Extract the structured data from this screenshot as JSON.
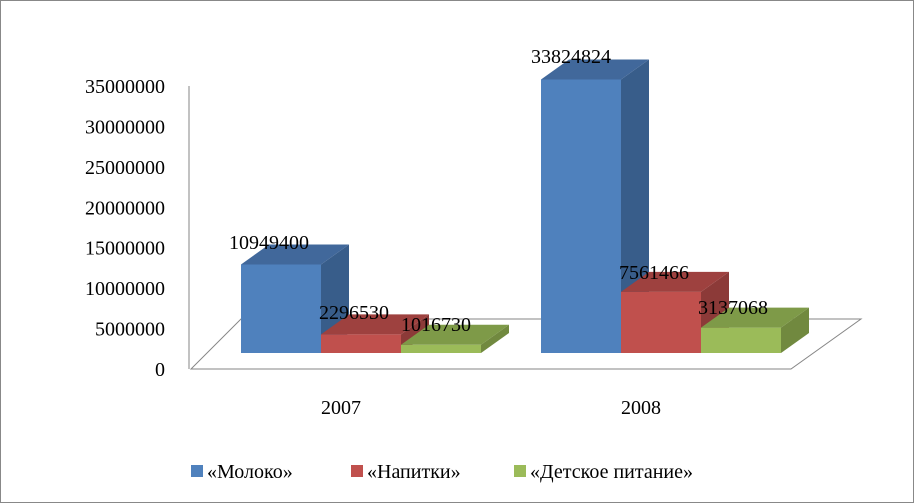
{
  "chart_data": {
    "type": "bar",
    "style": "3d-clustered-column",
    "title": "",
    "xlabel": "",
    "ylabel": "",
    "categories": [
      "2007",
      "2008"
    ],
    "series": [
      {
        "name": "«Молоко»",
        "values": [
          10949400,
          33824824
        ],
        "labels": [
          "10949400",
          "33824824"
        ],
        "color": "#4f81bd",
        "side": "#385d8a",
        "top": "#41689b"
      },
      {
        "name": "«Напитки»",
        "values": [
          2296530,
          7561466
        ],
        "labels": [
          "2296530",
          "7561466"
        ],
        "color": "#c0504d",
        "side": "#8c3a38",
        "top": "#9e413f"
      },
      {
        "name": "«Детское питание»",
        "values": [
          1016730,
          3137068
        ],
        "labels": [
          "1016730",
          "3137068"
        ],
        "color": "#9bbb59",
        "side": "#71893f",
        "top": "#7e9a48"
      }
    ],
    "ylim": [
      0,
      35000000
    ],
    "yticks": [
      "0",
      "5000000",
      "10000000",
      "15000000",
      "20000000",
      "25000000",
      "30000000",
      "35000000"
    ],
    "grid": false,
    "legend": "bottom"
  }
}
